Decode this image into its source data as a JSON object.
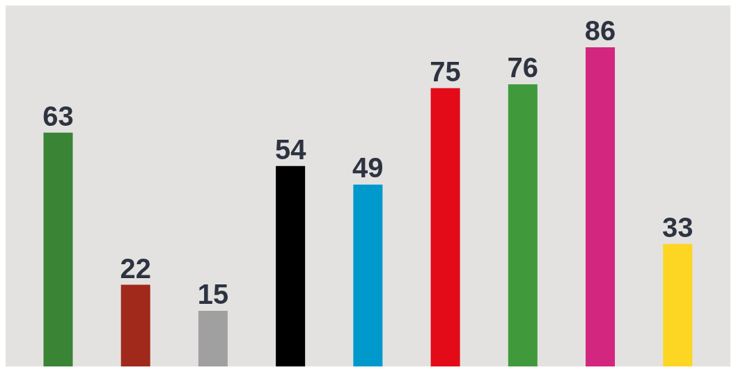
{
  "chart_data": {
    "type": "bar",
    "categories": [
      null,
      null,
      null,
      null,
      null,
      null,
      null,
      null,
      null
    ],
    "values": [
      63,
      22,
      15,
      54,
      49,
      75,
      76,
      86,
      33
    ],
    "colors": [
      "#3a8435",
      "#a0291b",
      "#a0a0a0",
      "#000000",
      "#0099cc",
      "#e30b17",
      "#409a3c",
      "#d2267f",
      "#fdd523"
    ],
    "data_labels": true
  }
}
